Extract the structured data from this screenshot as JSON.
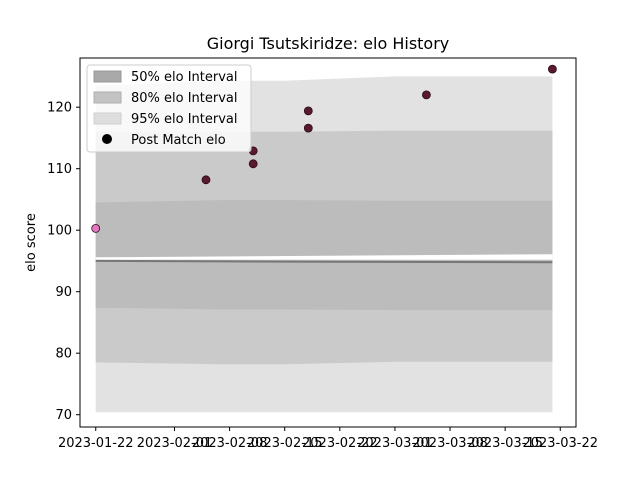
{
  "chart_data": {
    "type": "area",
    "title": "Giorgi Tsutskiridze: elo History",
    "xlabel": "",
    "ylabel": "elo score",
    "xlim": [
      "2023-01-20",
      "2023-03-24"
    ],
    "ylim": [
      68,
      128
    ],
    "x_ticks": [
      "2023-01-22",
      "2023-02-01",
      "2023-02-08",
      "2023-02-15",
      "2023-02-22",
      "2023-03-01",
      "2023-03-08",
      "2023-03-15",
      "2023-03-22"
    ],
    "y_ticks": [
      70,
      80,
      90,
      100,
      110,
      120
    ],
    "grid": false,
    "legend_position": "top-left",
    "legend": [
      {
        "label": "50% elo Interval",
        "kind": "patch",
        "color": "#a9a9a9"
      },
      {
        "label": "80% elo Interval",
        "kind": "patch",
        "color": "#c3c3c3"
      },
      {
        "label": "95% elo Interval",
        "kind": "patch",
        "color": "#dedede"
      },
      {
        "label": "Post Match elo",
        "kind": "marker",
        "color": "#000000"
      }
    ],
    "intervals": [
      {
        "name": "95% elo Interval",
        "color": "#e2e2e2",
        "x": [
          "2023-01-22",
          "2023-02-07",
          "2023-02-15",
          "2023-03-01",
          "2023-03-21"
        ],
        "upper": [
          123.5,
          124.3,
          124.3,
          125.0,
          125.0
        ],
        "lower": [
          70.4,
          70.4,
          70.4,
          70.4,
          70.4
        ]
      },
      {
        "name": "80% elo Interval",
        "color": "#cacaca",
        "x": [
          "2023-01-22",
          "2023-02-07",
          "2023-02-15",
          "2023-03-01",
          "2023-03-21"
        ],
        "upper": [
          116.0,
          116.0,
          116.0,
          116.2,
          116.2
        ],
        "lower": [
          78.5,
          78.2,
          78.2,
          78.6,
          78.6
        ]
      },
      {
        "name": "50% elo Interval",
        "color": "#bcbcbc",
        "x": [
          "2023-01-22",
          "2023-02-07",
          "2023-02-15",
          "2023-03-01",
          "2023-03-21"
        ],
        "upper": [
          104.5,
          104.9,
          104.9,
          104.8,
          104.8
        ],
        "lower": [
          87.4,
          87.1,
          87.1,
          87.0,
          87.0
        ]
      }
    ],
    "white_band": {
      "x": [
        "2023-01-22",
        "2023-03-21"
      ],
      "upper": [
        95.6,
        96.1
      ],
      "lower": [
        95.2,
        95.2
      ]
    },
    "mean_line": {
      "x": [
        "2023-01-22",
        "2023-02-15",
        "2023-03-21"
      ],
      "y": [
        95.0,
        94.9,
        94.8
      ],
      "color": "#777777"
    },
    "points": [
      {
        "x": "2023-01-22",
        "y": 100.3,
        "color": "#e377c2"
      },
      {
        "x": "2023-02-05",
        "y": 108.2,
        "color": "#5a1a2e"
      },
      {
        "x": "2023-02-11",
        "y": 112.9,
        "color": "#5a1a2e"
      },
      {
        "x": "2023-02-11",
        "y": 110.8,
        "color": "#5a1a2e"
      },
      {
        "x": "2023-02-18",
        "y": 119.4,
        "color": "#5a1a2e"
      },
      {
        "x": "2023-02-18",
        "y": 116.6,
        "color": "#5a1a2e"
      },
      {
        "x": "2023-03-05",
        "y": 122.0,
        "color": "#5a1a2e"
      },
      {
        "x": "2023-03-21",
        "y": 126.2,
        "color": "#5a1a2e"
      }
    ]
  }
}
